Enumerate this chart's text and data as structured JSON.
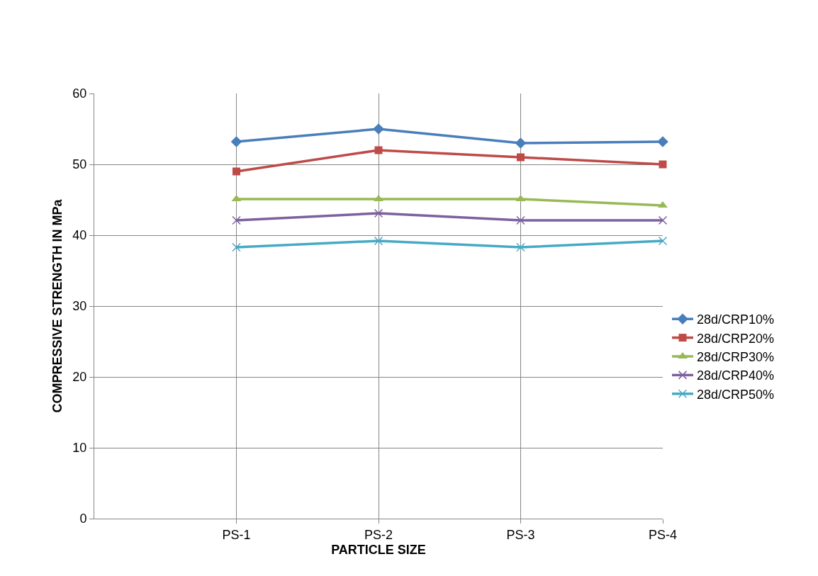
{
  "chart_data": {
    "type": "line",
    "xlabel": "PARTICLE SIZE",
    "ylabel": "COMPRESSIVE STRENGTH IN MPa",
    "categories": [
      null,
      "PS-1",
      "PS-2",
      "PS-3",
      "PS-4"
    ],
    "series": [
      {
        "name": "28d/CRP10%",
        "color": "#4a7ebb",
        "marker": "diamond",
        "values": [
          null,
          53.2,
          55,
          53,
          53.2
        ]
      },
      {
        "name": "28d/CRP20%",
        "color": "#be4b48",
        "marker": "square",
        "values": [
          null,
          49,
          52,
          51,
          50
        ]
      },
      {
        "name": "28d/CRP30%",
        "color": "#98b954",
        "marker": "triangle",
        "values": [
          null,
          45.1,
          45.1,
          45.1,
          44.2
        ]
      },
      {
        "name": "28d/CRP40%",
        "color": "#7d60a0",
        "marker": "cross",
        "values": [
          null,
          42.1,
          43.1,
          42.1,
          42.1
        ]
      },
      {
        "name": "28d/CRP50%",
        "color": "#46aac5",
        "marker": "cross",
        "values": [
          null,
          38.3,
          39.2,
          38.3,
          39.2
        ]
      }
    ],
    "ylim": [
      0,
      60
    ],
    "yticks": [
      0,
      10,
      20,
      30,
      40,
      50,
      60
    ],
    "grid": true,
    "legend": "right",
    "line_style": "solid"
  }
}
